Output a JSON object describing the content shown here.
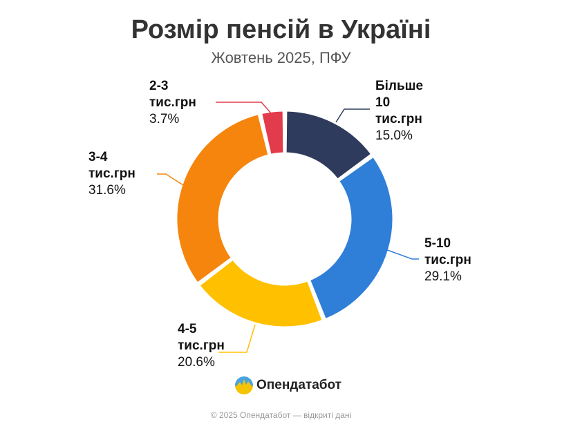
{
  "chart_data": {
    "type": "pie",
    "title": "Розмір пенсій в Україні",
    "subtitle": "Жовтень 2025, ПФУ",
    "slices": [
      {
        "label_lines": [
          "Більше",
          "10",
          "тис.грн"
        ],
        "value": 15.0,
        "value_label": "15.0%",
        "color": "#2f3b5c"
      },
      {
        "label_lines": [
          "5-10",
          "тис.грн"
        ],
        "value": 29.1,
        "value_label": "29.1%",
        "color": "#2f7fd8"
      },
      {
        "label_lines": [
          "4-5",
          "тис.грн"
        ],
        "value": 20.6,
        "value_label": "20.6%",
        "color": "#ffc000"
      },
      {
        "label_lines": [
          "3-4",
          "тис.грн"
        ],
        "value": 31.6,
        "value_label": "31.6%",
        "color": "#f5850c"
      },
      {
        "label_lines": [
          "2-3",
          "тис.грн"
        ],
        "value": 3.7,
        "value_label": "3.7%",
        "color": "#e23b4b"
      }
    ]
  },
  "brand": {
    "name": "Опендатабот"
  },
  "footer": {
    "text": "© 2025 Опендатабот — відкриті дані"
  }
}
